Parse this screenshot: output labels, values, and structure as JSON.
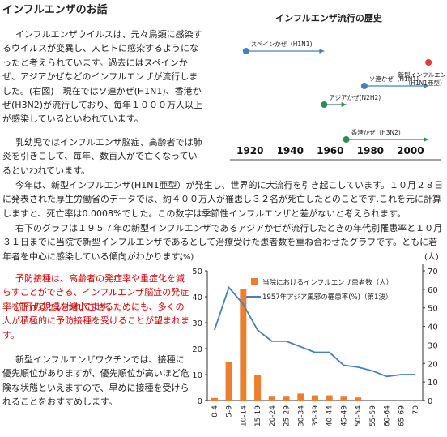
{
  "page": {
    "title": "インフルエンザのお話",
    "p1": "インフルエンザウイルスは、元々鳥類に感染するウイルスが変異し、人ヒトに感染するようになったと考えられています。過去にはスペインかぜ、アジアかぜなどのインフルエンザが流行しました。(右図)　現在ではソ連かぜ(H1N1)、香港かぜ(H3N2)が流行しており、毎年１０００万人以上が感染しているといわれています。",
    "p2": "乳幼児ではインフルエンザ脳症、高齢者では肺炎を引きこして、毎年、数百人がで亡くなっているといわれています。",
    "p3": "今年は、新型インフルエンザ(H1N1亜型）が発生し、世界的に大流行を引き起こしています。１０月２８日に発表された厚生労働省のデータでは、約４００万人が罹患し３２名が死亡したとのことです.これを元に計算しますと、死亡率は0.0008%でした。この数字は季節性インフルエンザと差がないと考えられます。",
    "p4": "右下のグラフは１９５７年の新型インフルエンザであるアジアかぜが流行したときの年代別罹患率と１０月３１日までに当院で新型インフルエンザであるとして治療受けた患者数を重ね合わせたグラフです。ともに若年者を中心に感染している傾向がわかります。",
    "r1": "予防接種は、高齢者の発症率や重症化を減らすことができる、インフルエンザ脳症の発症率を下げるといわれてます。",
    "r2": "流行の規模を縮小させるためにも、多くの人が積極的に予防接種を受けることが望まれます。",
    "p5": "新型インフルエンザワクチンでは、接種に優先順位がありますが、優先順位が高いほど危険な状態といえますので、早めに接種を受けられることをおすすめします。"
  },
  "chart_data": [
    {
      "type": "timeline",
      "title": "インフルエンザ流行の歴史",
      "x": [
        1920,
        1940,
        1960,
        1980,
        2000
      ],
      "xlim": [
        1910,
        2015
      ],
      "events": [
        {
          "name": "スペインかぜ（H1N1)",
          "start": 1918,
          "end": 1957,
          "color": "#4a7ebb"
        },
        {
          "name": "ソ連かぜ（H1N1)",
          "start": 1977,
          "end": 2009,
          "color": "#4a7ebb"
        },
        {
          "name": "アジアかぜ(N2H2)",
          "start": 1957,
          "end": 1968,
          "color": "#2e8b57"
        },
        {
          "name": "香港かぜ（H3N2)",
          "start": 1968,
          "end": 2009,
          "color": "#2e8b57"
        },
        {
          "name": "新型インフルエンザ（H1N1亜型）",
          "start": 2009,
          "end": 2009,
          "color": "#e03c3c"
        }
      ]
    },
    {
      "type": "bar+line",
      "categories": [
        "0-4",
        "5-9",
        "10-14",
        "15-19",
        "20-24",
        "25-29",
        "30-34",
        "35-39",
        "40-44",
        "45-49",
        "50-54",
        "55-59",
        "60-64",
        "65-69",
        "70"
      ],
      "series": [
        {
          "name": "当院におけるインフルエンザ患者数（人）",
          "type": "bar",
          "axis": "left",
          "color": "#ed7d31",
          "values": [
            1,
            15,
            43,
            10,
            1.5,
            1.5,
            2.7,
            2,
            2,
            1.5,
            1.2,
            0,
            0,
            0,
            0
          ]
        },
        {
          "name": "1957年アジア風邪の罹患率(%)（第1波）",
          "type": "line",
          "axis": "right",
          "color": "#4a7ebb",
          "values": [
            38,
            61,
            52,
            38,
            32,
            32,
            29,
            26,
            26,
            19,
            18,
            16,
            13,
            14,
            14
          ]
        }
      ],
      "ylabel_left": "(%)",
      "ylabel_right": "(人)",
      "ylim_left": [
        0,
        50
      ],
      "ylim_right": [
        0,
        70
      ],
      "yticks_left": [
        0,
        10,
        20,
        30,
        40,
        50
      ],
      "yticks_right": [
        0,
        10,
        20,
        30,
        40,
        50,
        60,
        70
      ],
      "legend": "top-right",
      "grid": false
    }
  ]
}
